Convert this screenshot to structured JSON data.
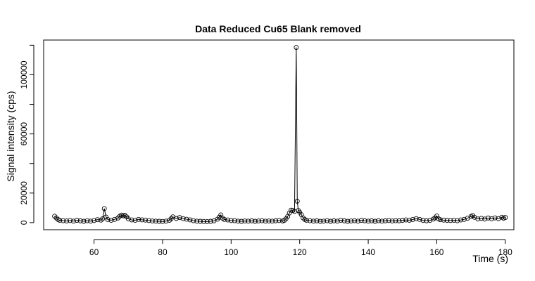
{
  "chart_data": {
    "type": "line",
    "title": "Data Reduced Cu65 Blank removed",
    "xlabel": "Time (s)",
    "ylabel": "Signal intensity (cps)",
    "xlim": [
      45.3,
      182.5
    ],
    "ylim": [
      -4800,
      123500
    ],
    "x_ticks": [
      60,
      80,
      100,
      120,
      140,
      160,
      180
    ],
    "y_ticks": [
      0,
      20000,
      40000,
      60000,
      80000,
      100000,
      120000
    ],
    "y_tick_labels_shown": [
      0,
      20000,
      60000,
      100000
    ],
    "grid": false,
    "legend": "none",
    "markers": "open-circle",
    "series": [
      {
        "values": [
          {
            "x": 48.5,
            "y": 4300
          },
          {
            "x": 49.0,
            "y": 3200
          },
          {
            "x": 49.5,
            "y": 2100
          },
          {
            "x": 50.0,
            "y": 1600
          },
          {
            "x": 51.0,
            "y": 1300
          },
          {
            "x": 52.0,
            "y": 1100
          },
          {
            "x": 53.0,
            "y": 1400
          },
          {
            "x": 54.0,
            "y": 1000
          },
          {
            "x": 55.0,
            "y": 1500
          },
          {
            "x": 56.0,
            "y": 1200
          },
          {
            "x": 57.0,
            "y": 900
          },
          {
            "x": 58.0,
            "y": 1300
          },
          {
            "x": 59.0,
            "y": 1000
          },
          {
            "x": 60.0,
            "y": 1400
          },
          {
            "x": 61.0,
            "y": 2000
          },
          {
            "x": 62.0,
            "y": 1700
          },
          {
            "x": 62.5,
            "y": 2600
          },
          {
            "x": 63.0,
            "y": 9500
          },
          {
            "x": 63.5,
            "y": 3800
          },
          {
            "x": 64.0,
            "y": 2100
          },
          {
            "x": 65.0,
            "y": 1600
          },
          {
            "x": 66.0,
            "y": 2200
          },
          {
            "x": 67.0,
            "y": 3100
          },
          {
            "x": 67.5,
            "y": 4300
          },
          {
            "x": 68.0,
            "y": 5100
          },
          {
            "x": 68.5,
            "y": 4600
          },
          {
            "x": 69.0,
            "y": 5000
          },
          {
            "x": 69.5,
            "y": 3900
          },
          {
            "x": 70.0,
            "y": 2600
          },
          {
            "x": 71.0,
            "y": 1800
          },
          {
            "x": 72.0,
            "y": 1600
          },
          {
            "x": 73.0,
            "y": 2200
          },
          {
            "x": 74.0,
            "y": 1900
          },
          {
            "x": 75.0,
            "y": 1700
          },
          {
            "x": 76.0,
            "y": 1400
          },
          {
            "x": 77.0,
            "y": 1100
          },
          {
            "x": 78.0,
            "y": 1000
          },
          {
            "x": 79.0,
            "y": 900
          },
          {
            "x": 80.0,
            "y": 800
          },
          {
            "x": 81.0,
            "y": 1000
          },
          {
            "x": 82.0,
            "y": 1600
          },
          {
            "x": 82.5,
            "y": 2600
          },
          {
            "x": 83.0,
            "y": 3900
          },
          {
            "x": 84.0,
            "y": 2800
          },
          {
            "x": 85.0,
            "y": 3400
          },
          {
            "x": 86.0,
            "y": 2700
          },
          {
            "x": 87.0,
            "y": 2300
          },
          {
            "x": 88.0,
            "y": 1900
          },
          {
            "x": 89.0,
            "y": 1300
          },
          {
            "x": 90.0,
            "y": 1000
          },
          {
            "x": 91.0,
            "y": 900
          },
          {
            "x": 92.0,
            "y": 800
          },
          {
            "x": 93.0,
            "y": 700
          },
          {
            "x": 94.0,
            "y": 900
          },
          {
            "x": 95.0,
            "y": 1200
          },
          {
            "x": 96.0,
            "y": 2300
          },
          {
            "x": 96.5,
            "y": 3600
          },
          {
            "x": 97.0,
            "y": 5200
          },
          {
            "x": 97.5,
            "y": 3000
          },
          {
            "x": 98.0,
            "y": 2200
          },
          {
            "x": 99.0,
            "y": 1800
          },
          {
            "x": 100.0,
            "y": 1400
          },
          {
            "x": 101.0,
            "y": 1300
          },
          {
            "x": 102.0,
            "y": 1000
          },
          {
            "x": 103.0,
            "y": 900
          },
          {
            "x": 104.0,
            "y": 1100
          },
          {
            "x": 105.0,
            "y": 1000
          },
          {
            "x": 106.0,
            "y": 1200
          },
          {
            "x": 107.0,
            "y": 900
          },
          {
            "x": 108.0,
            "y": 1100
          },
          {
            "x": 109.0,
            "y": 1300
          },
          {
            "x": 110.0,
            "y": 1000
          },
          {
            "x": 111.0,
            "y": 1100
          },
          {
            "x": 112.0,
            "y": 1000
          },
          {
            "x": 113.0,
            "y": 1200
          },
          {
            "x": 114.0,
            "y": 1400
          },
          {
            "x": 115.0,
            "y": 1100
          },
          {
            "x": 115.5,
            "y": 1500
          },
          {
            "x": 116.0,
            "y": 2600
          },
          {
            "x": 116.5,
            "y": 4200
          },
          {
            "x": 117.0,
            "y": 6500
          },
          {
            "x": 117.5,
            "y": 8400
          },
          {
            "x": 118.0,
            "y": 8200
          },
          {
            "x": 118.5,
            "y": 7600
          },
          {
            "x": 119.0,
            "y": 118500
          },
          {
            "x": 119.3,
            "y": 14500
          },
          {
            "x": 119.6,
            "y": 8200
          },
          {
            "x": 120.0,
            "y": 7000
          },
          {
            "x": 120.5,
            "y": 5400
          },
          {
            "x": 121.0,
            "y": 3200
          },
          {
            "x": 121.5,
            "y": 2100
          },
          {
            "x": 122.0,
            "y": 1600
          },
          {
            "x": 123.0,
            "y": 1300
          },
          {
            "x": 124.0,
            "y": 1000
          },
          {
            "x": 125.0,
            "y": 1200
          },
          {
            "x": 126.0,
            "y": 900
          },
          {
            "x": 127.0,
            "y": 1000
          },
          {
            "x": 128.0,
            "y": 1300
          },
          {
            "x": 129.0,
            "y": 900
          },
          {
            "x": 130.0,
            "y": 1200
          },
          {
            "x": 131.0,
            "y": 1000
          },
          {
            "x": 132.0,
            "y": 1600
          },
          {
            "x": 133.0,
            "y": 1200
          },
          {
            "x": 134.0,
            "y": 900
          },
          {
            "x": 135.0,
            "y": 1100
          },
          {
            "x": 136.0,
            "y": 1300
          },
          {
            "x": 137.0,
            "y": 1000
          },
          {
            "x": 138.0,
            "y": 1500
          },
          {
            "x": 139.0,
            "y": 1200
          },
          {
            "x": 140.0,
            "y": 1000
          },
          {
            "x": 141.0,
            "y": 1200
          },
          {
            "x": 142.0,
            "y": 900
          },
          {
            "x": 143.0,
            "y": 1300
          },
          {
            "x": 144.0,
            "y": 1000
          },
          {
            "x": 145.0,
            "y": 1200
          },
          {
            "x": 146.0,
            "y": 1400
          },
          {
            "x": 147.0,
            "y": 1100
          },
          {
            "x": 148.0,
            "y": 1300
          },
          {
            "x": 149.0,
            "y": 1200
          },
          {
            "x": 150.0,
            "y": 1500
          },
          {
            "x": 151.0,
            "y": 1800
          },
          {
            "x": 152.0,
            "y": 1600
          },
          {
            "x": 153.0,
            "y": 2100
          },
          {
            "x": 154.0,
            "y": 2700
          },
          {
            "x": 155.0,
            "y": 2200
          },
          {
            "x": 156.0,
            "y": 1500
          },
          {
            "x": 157.0,
            "y": 1200
          },
          {
            "x": 158.0,
            "y": 1500
          },
          {
            "x": 159.0,
            "y": 2400
          },
          {
            "x": 159.5,
            "y": 3200
          },
          {
            "x": 160.0,
            "y": 4500
          },
          {
            "x": 160.5,
            "y": 2600
          },
          {
            "x": 161.0,
            "y": 2000
          },
          {
            "x": 162.0,
            "y": 1700
          },
          {
            "x": 163.0,
            "y": 1500
          },
          {
            "x": 164.0,
            "y": 1400
          },
          {
            "x": 165.0,
            "y": 1600
          },
          {
            "x": 166.0,
            "y": 1300
          },
          {
            "x": 167.0,
            "y": 1800
          },
          {
            "x": 168.0,
            "y": 2200
          },
          {
            "x": 169.0,
            "y": 3000
          },
          {
            "x": 170.0,
            "y": 4200
          },
          {
            "x": 170.5,
            "y": 4800
          },
          {
            "x": 171.0,
            "y": 3600
          },
          {
            "x": 172.0,
            "y": 2500
          },
          {
            "x": 173.0,
            "y": 2900
          },
          {
            "x": 174.0,
            "y": 2400
          },
          {
            "x": 175.0,
            "y": 3100
          },
          {
            "x": 176.0,
            "y": 2600
          },
          {
            "x": 177.0,
            "y": 3200
          },
          {
            "x": 178.0,
            "y": 2700
          },
          {
            "x": 179.0,
            "y": 3600
          },
          {
            "x": 179.5,
            "y": 3000
          },
          {
            "x": 180.0,
            "y": 3500
          }
        ]
      }
    ]
  }
}
